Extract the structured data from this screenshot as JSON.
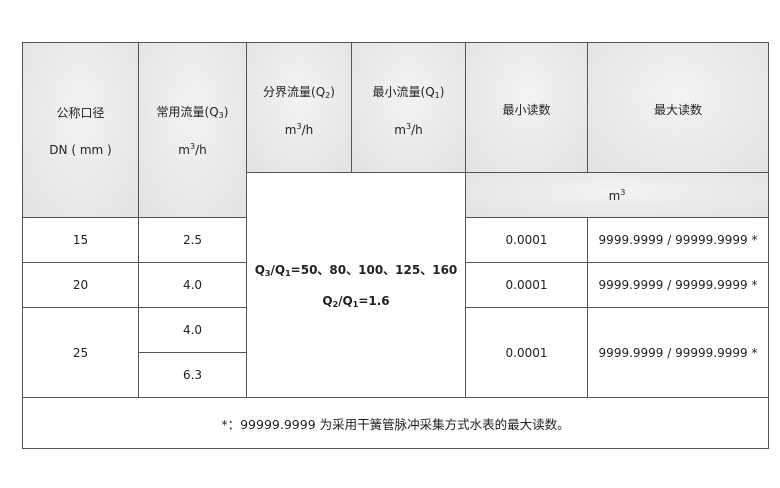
{
  "header": {
    "dn": {
      "line1": "公称口径",
      "line2": "DN ( mm )"
    },
    "q3": {
      "label": "常用流量(Q",
      "sub": "3",
      "close": ")",
      "unit_m": "m",
      "unit_sup": "3",
      "unit_h": "/h"
    },
    "q2": {
      "label": "分界流量(Q",
      "sub": "2",
      "close": ")",
      "unit_m": "m",
      "unit_sup": "3",
      "unit_h": "/h"
    },
    "q1": {
      "label": "最小流量(Q",
      "sub": "1",
      "close": ")",
      "unit_m": "m",
      "unit_sup": "3",
      "unit_h": "/h"
    },
    "min_reading": "最小读数",
    "max_reading": "最大读数",
    "reading_unit": {
      "m": "m",
      "sup": "3"
    }
  },
  "ratio": {
    "line1": {
      "a": "Q",
      "a_sub": "3",
      "b": "/Q",
      "b_sub": "1",
      "rest": "=50、80、100、125、160"
    },
    "line2": {
      "a": "Q",
      "a_sub": "2",
      "b": "/Q",
      "b_sub": "1",
      "rest": "=1.6"
    }
  },
  "rows": [
    {
      "dn": "15",
      "q3": "2.5",
      "min": "0.0001",
      "max": "9999.9999 / 99999.9999 *"
    },
    {
      "dn": "20",
      "q3": "4.0",
      "min": "0.0001",
      "max": "9999.9999 / 99999.9999 *"
    },
    {
      "dn": "25",
      "q3": "4.0",
      "q3b": "6.3",
      "min": "0.0001",
      "max": "9999.9999 / 99999.9999 *"
    }
  ],
  "footnote": "*：99999.9999 为采用干簧管脉冲采集方式水表的最大读数。"
}
